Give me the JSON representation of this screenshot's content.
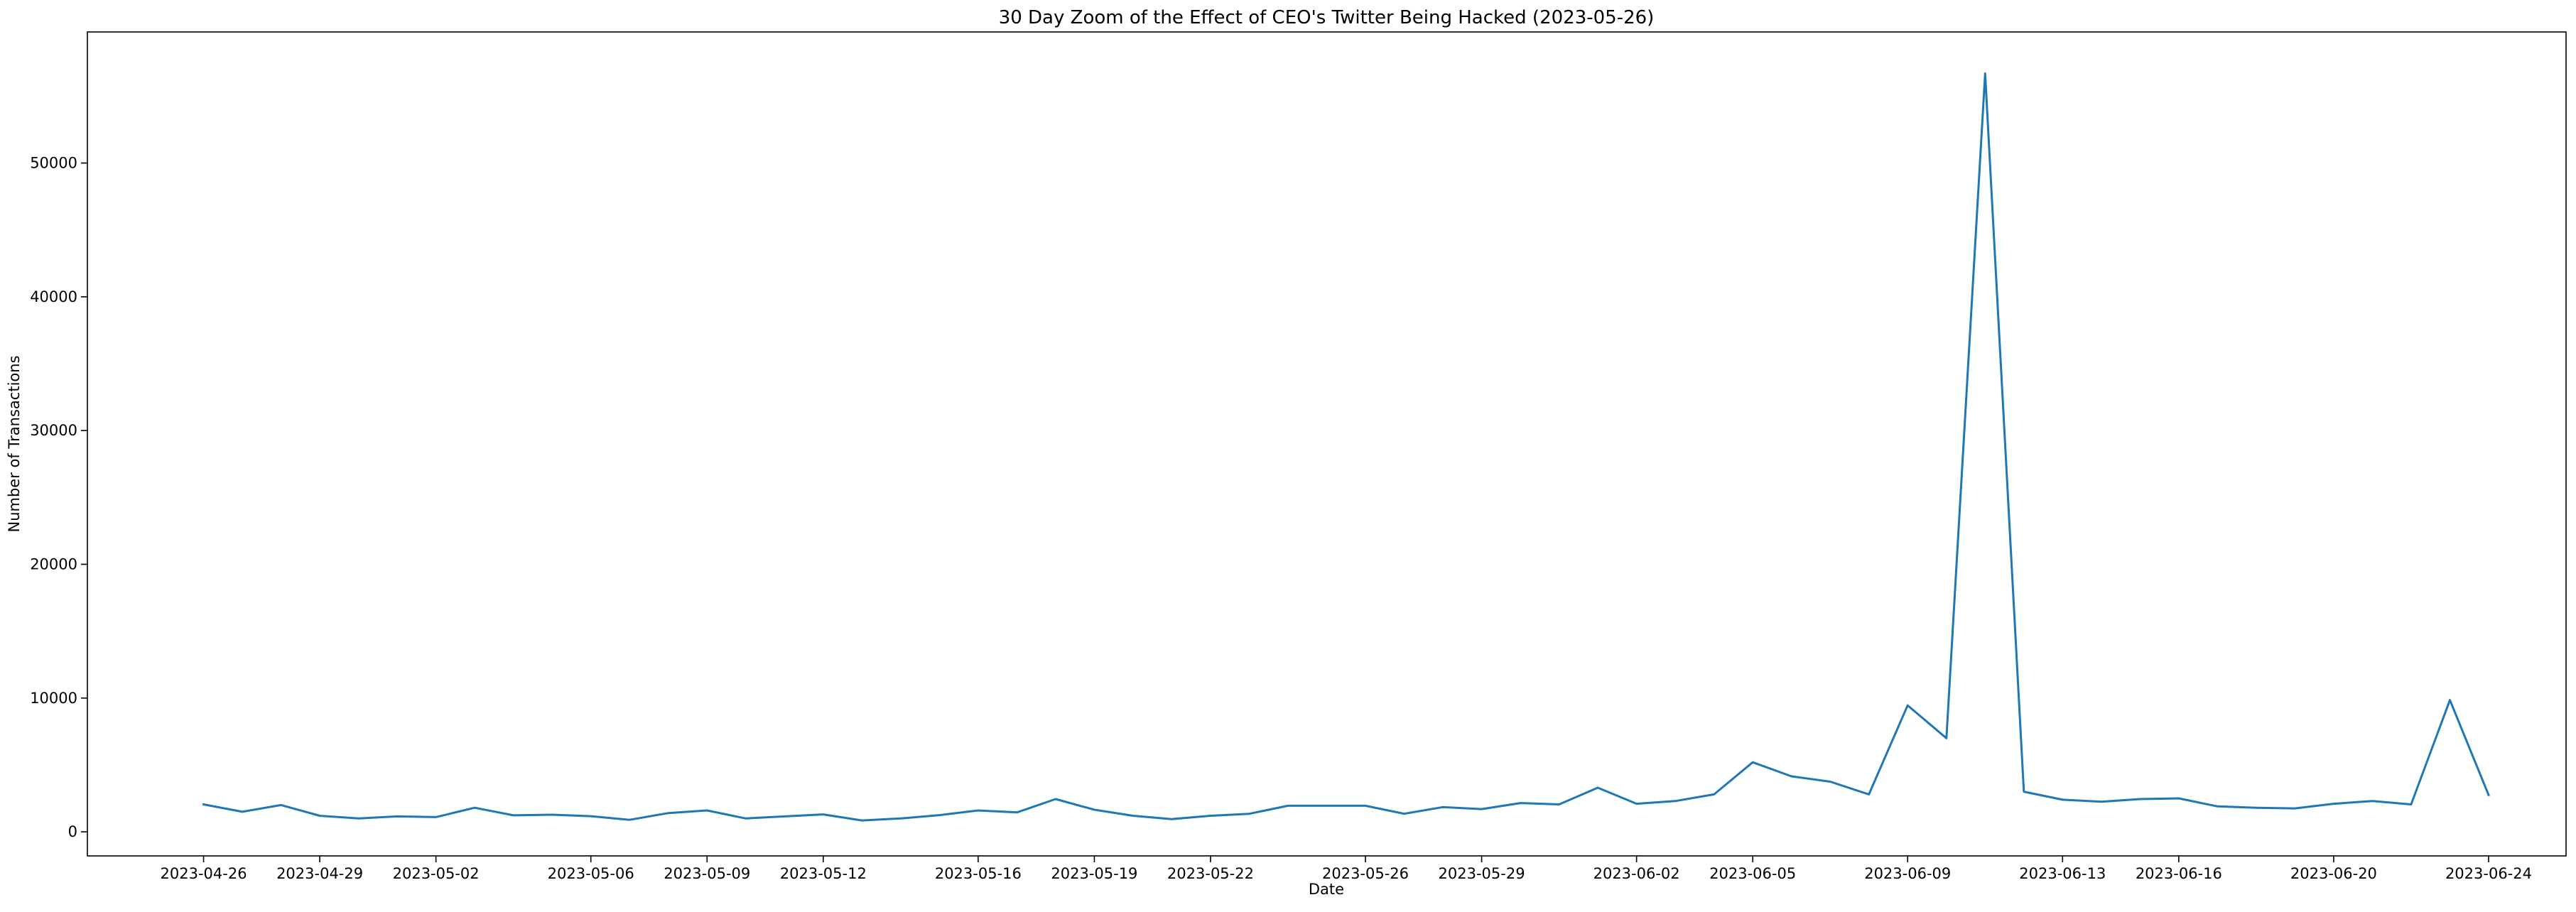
{
  "chart_data": {
    "type": "line",
    "title": "30 Day Zoom of the Effect of CEO's Twitter Being Hacked (2023-05-26)",
    "xlabel": "Date",
    "ylabel": "Number of Transactions",
    "xlim": [
      "2023-04-23",
      "2023-06-26"
    ],
    "ylim": [
      -1800,
      59800
    ],
    "xticks": [
      "2023-04-26",
      "2023-04-29",
      "2023-05-02",
      "2023-05-06",
      "2023-05-09",
      "2023-05-12",
      "2023-05-16",
      "2023-05-19",
      "2023-05-22",
      "2023-05-26",
      "2023-05-29",
      "2023-06-02",
      "2023-06-05",
      "2023-06-09",
      "2023-06-13",
      "2023-06-16",
      "2023-06-20",
      "2023-06-24"
    ],
    "yticks": [
      0,
      10000,
      20000,
      30000,
      40000,
      50000
    ],
    "ytick_labels": [
      "0",
      "10000",
      "20000",
      "30000",
      "40000",
      "50000"
    ],
    "grid": false,
    "line_color": "#1f77b4",
    "series": [
      {
        "x": [
          "2023-04-26",
          "2023-04-27",
          "2023-04-28",
          "2023-04-29",
          "2023-04-30",
          "2023-05-01",
          "2023-05-02",
          "2023-05-03",
          "2023-05-04",
          "2023-05-05",
          "2023-05-06",
          "2023-05-07",
          "2023-05-08",
          "2023-05-09",
          "2023-05-10",
          "2023-05-11",
          "2023-05-12",
          "2023-05-13",
          "2023-05-14",
          "2023-05-15",
          "2023-05-16",
          "2023-05-17",
          "2023-05-18",
          "2023-05-19",
          "2023-05-20",
          "2023-05-21",
          "2023-05-22",
          "2023-05-23",
          "2023-05-24",
          "2023-05-25",
          "2023-05-26",
          "2023-05-27",
          "2023-05-28",
          "2023-05-29",
          "2023-05-30",
          "2023-05-31",
          "2023-06-01",
          "2023-06-02",
          "2023-06-03",
          "2023-06-04",
          "2023-06-05",
          "2023-06-06",
          "2023-06-07",
          "2023-06-08",
          "2023-06-09",
          "2023-06-10",
          "2023-06-11",
          "2023-06-12",
          "2023-06-13",
          "2023-06-14",
          "2023-06-15",
          "2023-06-16",
          "2023-06-17",
          "2023-06-18",
          "2023-06-19",
          "2023-06-20",
          "2023-06-21",
          "2023-06-22",
          "2023-06-23",
          "2023-06-24"
        ],
        "values": [
          2050,
          1500,
          2000,
          1200,
          1000,
          1150,
          1100,
          1800,
          1230,
          1280,
          1170,
          900,
          1400,
          1600,
          1000,
          1150,
          1300,
          850,
          1000,
          1250,
          1600,
          1450,
          2450,
          1650,
          1200,
          950,
          1200,
          1350,
          1950,
          1950,
          1950,
          1350,
          1850,
          1700,
          2150,
          2050,
          3300,
          2100,
          2300,
          2800,
          5200,
          4150,
          3750,
          2800,
          9450,
          7000,
          56700,
          3000,
          2400,
          2250,
          2450,
          2500,
          1900,
          1800,
          1750,
          2100,
          2300,
          2050,
          9850,
          2750
        ]
      }
    ]
  }
}
